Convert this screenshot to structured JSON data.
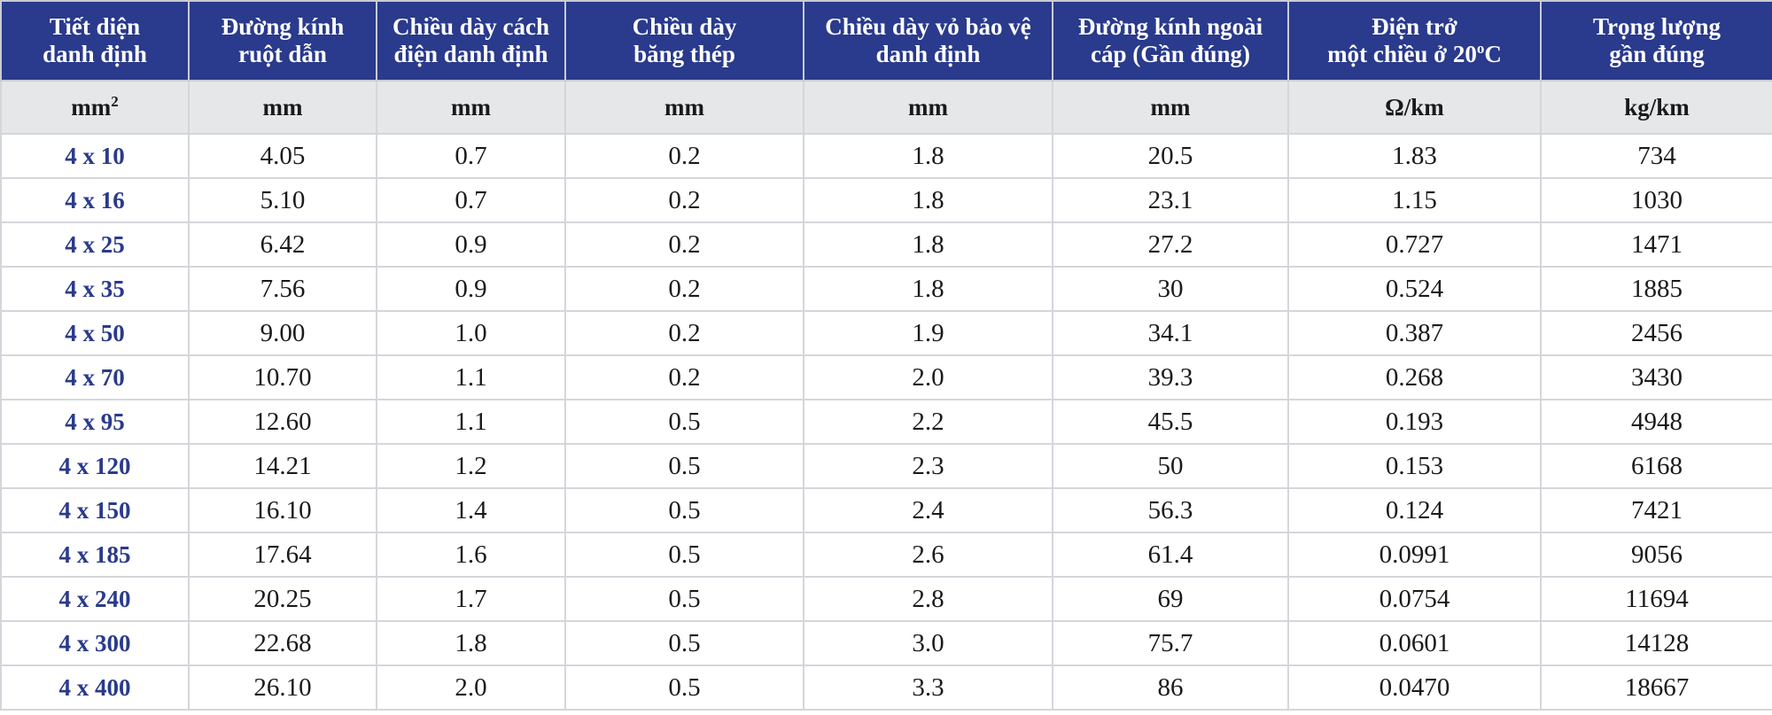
{
  "headers": [
    [
      "Tiết diện",
      "danh định"
    ],
    [
      "Đường kính",
      "ruột dẫn"
    ],
    [
      "Chiều dày cách",
      "điện danh định"
    ],
    [
      "Chiều dày",
      "băng thép"
    ],
    [
      "Chiều dày vỏ bảo vệ",
      "danh định"
    ],
    [
      "Đường kính ngoài",
      "cáp (Gần đúng)"
    ],
    [
      "Điện trở",
      "một chiều ở 20",
      "o",
      "C"
    ],
    [
      "Trọng lượng",
      "gần đúng"
    ]
  ],
  "units": [
    "mm",
    "2",
    "mm",
    "mm",
    "mm",
    "mm",
    "mm",
    "Ω/km",
    "kg/km"
  ],
  "rows": [
    [
      "4 x 10",
      "4.05",
      "0.7",
      "0.2",
      "1.8",
      "20.5",
      "1.83",
      "734"
    ],
    [
      "4 x 16",
      "5.10",
      "0.7",
      "0.2",
      "1.8",
      "23.1",
      "1.15",
      "1030"
    ],
    [
      "4 x 25",
      "6.42",
      "0.9",
      "0.2",
      "1.8",
      "27.2",
      "0.727",
      "1471"
    ],
    [
      "4 x 35",
      "7.56",
      "0.9",
      "0.2",
      "1.8",
      "30",
      "0.524",
      "1885"
    ],
    [
      "4 x 50",
      "9.00",
      "1.0",
      "0.2",
      "1.9",
      "34.1",
      "0.387",
      "2456"
    ],
    [
      "4 x 70",
      "10.70",
      "1.1",
      "0.2",
      "2.0",
      "39.3",
      "0.268",
      "3430"
    ],
    [
      "4 x 95",
      "12.60",
      "1.1",
      "0.5",
      "2.2",
      "45.5",
      "0.193",
      "4948"
    ],
    [
      "4 x 120",
      "14.21",
      "1.2",
      "0.5",
      "2.3",
      "50",
      "0.153",
      "6168"
    ],
    [
      "4 x 150",
      "16.10",
      "1.4",
      "0.5",
      "2.4",
      "56.3",
      "0.124",
      "7421"
    ],
    [
      "4 x 185",
      "17.64",
      "1.6",
      "0.5",
      "2.6",
      "61.4",
      "0.0991",
      "9056"
    ],
    [
      "4 x 240",
      "20.25",
      "1.7",
      "0.5",
      "2.8",
      "69",
      "0.0754",
      "11694"
    ],
    [
      "4 x 300",
      "22.68",
      "1.8",
      "0.5",
      "3.0",
      "75.7",
      "0.0601",
      "14128"
    ],
    [
      "4 x 400",
      "26.10",
      "2.0",
      "0.5",
      "3.3",
      "86",
      "0.0470",
      "18667"
    ]
  ],
  "colors": {
    "header_bg": "#2a3a8c",
    "header_text": "#ffffff",
    "units_bg": "#e6e7e9",
    "size_text": "#2a3a8c",
    "grid": "#d4d6db"
  }
}
